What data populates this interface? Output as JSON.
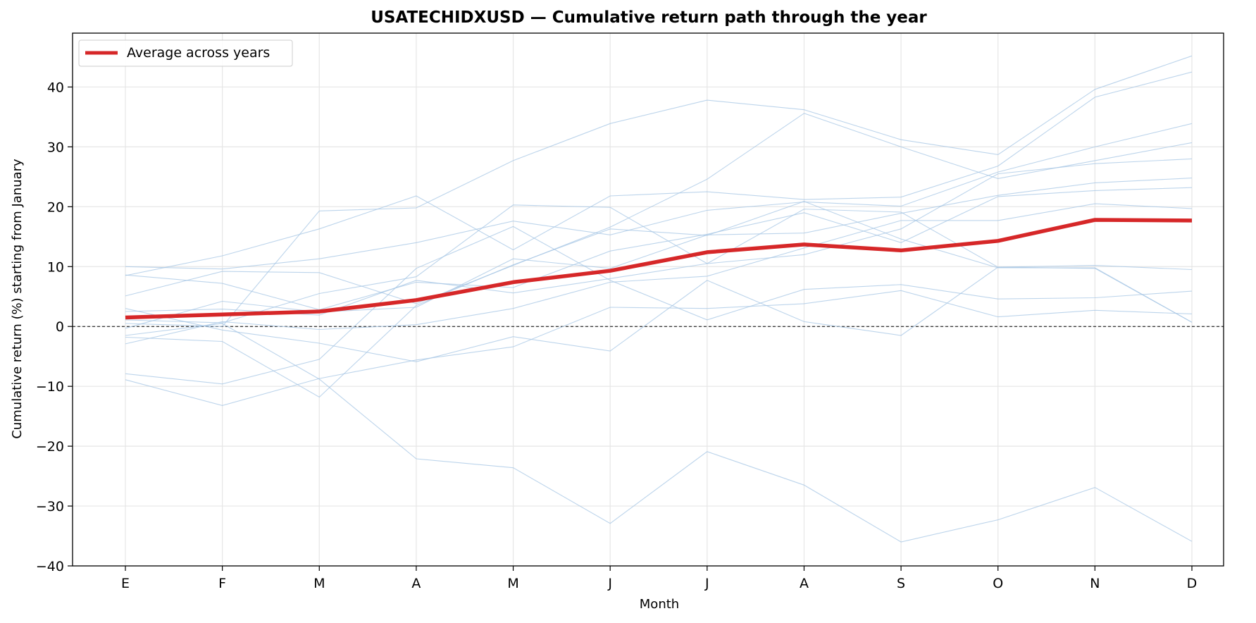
{
  "chart_data": {
    "type": "line",
    "title": "USATECHIDXUSD — Cumulative return path through the year",
    "xlabel": "Month",
    "ylabel": "Cumulative return (%) starting from January",
    "categories": [
      "E",
      "F",
      "M",
      "A",
      "M",
      "J",
      "J",
      "A",
      "S",
      "O",
      "N",
      "D"
    ],
    "ylim": [
      -40,
      49
    ],
    "yticks": [
      -40,
      -30,
      -20,
      -10,
      0,
      10,
      20,
      30,
      40
    ],
    "ytick_labels": [
      "−40",
      "−30",
      "−20",
      "−10",
      "0",
      "10",
      "20",
      "30",
      "40"
    ],
    "grid": true,
    "zero_line": true,
    "legend_position": "upper-left",
    "colors": {
      "average": "#d62728",
      "years": "#a6c6e4"
    },
    "average": {
      "name": "Average across years",
      "values": [
        1.5,
        2.0,
        2.5,
        4.4,
        7.4,
        9.3,
        12.4,
        13.7,
        12.7,
        14.3,
        17.8,
        17.7
      ]
    },
    "years": [
      [
        0.5,
        0.0,
        19.3,
        19.8,
        27.7,
        33.9,
        37.8,
        36.2,
        31.2,
        28.7,
        39.6,
        45.2
      ],
      [
        -1.5,
        0.5,
        -8.8,
        -22.1,
        -23.6,
        -32.9,
        -20.9,
        -26.5,
        -36.0,
        -32.3,
        -26.9,
        -35.9
      ],
      [
        8.5,
        11.8,
        16.3,
        21.8,
        12.8,
        21.8,
        22.5,
        21.2,
        21.6,
        26.8,
        38.3,
        42.5
      ],
      [
        10.0,
        9.6,
        11.3,
        14.0,
        17.6,
        15.3,
        19.4,
        20.8,
        20.1,
        25.8,
        30.0,
        33.9
      ],
      [
        5.1,
        9.2,
        9.0,
        3.8,
        10.2,
        16.6,
        24.6,
        35.6,
        30.0,
        24.7,
        27.7,
        30.7
      ],
      [
        2.5,
        2.9,
        1.9,
        7.7,
        5.6,
        8.0,
        10.5,
        12.0,
        16.3,
        25.5,
        27.2,
        28.0
      ],
      [
        -0.3,
        4.2,
        2.4,
        3.2,
        11.3,
        9.7,
        15.3,
        15.6,
        18.9,
        21.9,
        24.0,
        24.8
      ],
      [
        8.6,
        7.2,
        2.8,
        7.4,
        6.5,
        12.6,
        15.4,
        19.0,
        14.0,
        21.7,
        22.7,
        23.2
      ],
      [
        -2.9,
        0.8,
        -0.5,
        0.3,
        3.0,
        7.4,
        8.4,
        13.1,
        17.7,
        17.7,
        20.5,
        19.7
      ],
      [
        1.1,
        0.6,
        5.5,
        8.3,
        20.3,
        19.9,
        10.5,
        19.6,
        19.1,
        9.9,
        10.2,
        9.5
      ],
      [
        -1.8,
        -2.5,
        -11.8,
        3.5,
        10.3,
        16.3,
        15.2,
        20.9,
        14.6,
        9.8,
        9.8,
        0.7
      ],
      [
        3.0,
        -0.6,
        -2.8,
        -5.9,
        -1.7,
        -4.1,
        7.7,
        0.8,
        -1.5,
        9.9,
        9.7,
        0.7
      ],
      [
        -7.9,
        -9.6,
        -5.5,
        9.7,
        16.7,
        7.7,
        1.1,
        6.2,
        7.0,
        4.6,
        4.8,
        5.9
      ],
      [
        -8.9,
        -13.2,
        -8.7,
        -5.6,
        -3.4,
        3.2,
        3.0,
        3.8,
        6.0,
        1.6,
        2.7,
        2.1
      ]
    ]
  }
}
